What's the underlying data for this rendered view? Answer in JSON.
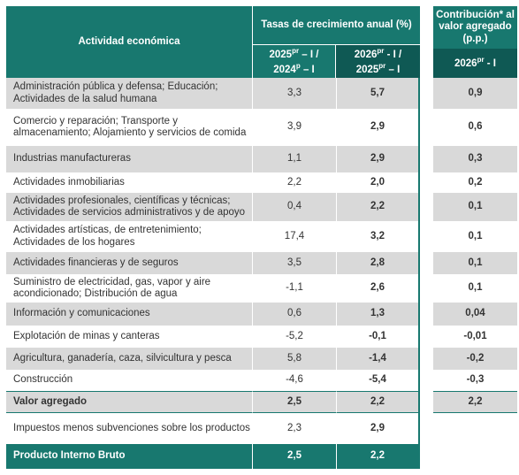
{
  "header": {
    "activity": "Actividad económica",
    "growth_title": "Tasas de crecimiento anual (%)",
    "growth_col1": [
      "2025",
      "pr",
      "– I /",
      "2024",
      "p",
      "– I"
    ],
    "growth_col2": [
      "2026",
      "pr",
      "- I /",
      "2025",
      "pr",
      "– I"
    ],
    "contribution_title": "Contribución* al valor agregado (p.p.)",
    "contribution_col": [
      "2026",
      "pr",
      "- I"
    ]
  },
  "table": {
    "rows": [
      {
        "activity": "Administración pública y defensa; Educación; Actividades de la salud humana",
        "growth_2025": "3,3",
        "growth_2026": "5,7",
        "contribution": "0,9"
      },
      {
        "activity": "Comercio y reparación; Transporte y almacenamiento; Alojamiento y servicios de comida",
        "growth_2025": "3,9",
        "growth_2026": "2,9",
        "contribution": "0,6"
      },
      {
        "activity": "Industrias manufactureras",
        "growth_2025": "1,1",
        "growth_2026": "2,9",
        "contribution": "0,3"
      },
      {
        "activity": "Actividades inmobiliarias",
        "growth_2025": "2,2",
        "growth_2026": "2,0",
        "contribution": "0,2"
      },
      {
        "activity": "Actividades profesionales, científicas y técnicas; Actividades de servicios administrativos y de apoyo",
        "growth_2025": "0,4",
        "growth_2026": "2,2",
        "contribution": "0,1"
      },
      {
        "activity": "Actividades artísticas, de entretenimiento; Actividades de los hogares",
        "growth_2025": "17,4",
        "growth_2026": "3,2",
        "contribution": "0,1"
      },
      {
        "activity": "Actividades financieras y de seguros",
        "growth_2025": "3,5",
        "growth_2026": "2,8",
        "contribution": "0,1"
      },
      {
        "activity": "Suministro de electricidad, gas, vapor y aire acondicionado; Distribución de agua",
        "growth_2025": "-1,1",
        "growth_2026": "2,6",
        "contribution": "0,1"
      },
      {
        "activity": "Información y comunicaciones",
        "growth_2025": "0,6",
        "growth_2026": "1,3",
        "contribution": "0,04"
      },
      {
        "activity": "Explotación de minas y canteras",
        "growth_2025": "-5,2",
        "growth_2026": "-0,1",
        "contribution": "-0,01"
      },
      {
        "activity": "Agricultura, ganadería, caza, silvicultura y pesca",
        "growth_2025": "5,8",
        "growth_2026": "-1,4",
        "contribution": "-0,2"
      },
      {
        "activity": "Construcción",
        "growth_2025": "-4,6",
        "growth_2026": "-5,4",
        "contribution": "-0,3"
      },
      {
        "activity": "Valor agregado",
        "growth_2025": "2,5",
        "growth_2026": "2,2",
        "contribution": "2,2"
      },
      {
        "activity": "Impuestos menos subvenciones sobre los productos",
        "growth_2025": "2,3",
        "growth_2026": "2,9"
      },
      {
        "activity": "Producto Interno Bruto",
        "growth_2025": "2,5",
        "growth_2026": "2,2"
      }
    ]
  }
}
